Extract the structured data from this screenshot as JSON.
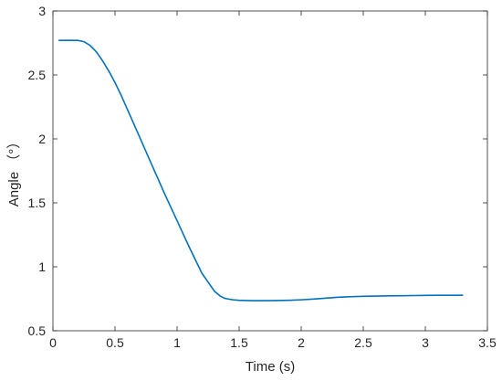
{
  "chart_data": {
    "type": "line",
    "title": "",
    "xlabel": "Time (s)",
    "ylabel": "Angle （°）",
    "xlim": [
      0,
      3.5
    ],
    "ylim": [
      0.5,
      3
    ],
    "xticks": [
      "0",
      "0.5",
      "1",
      "1.5",
      "2",
      "2.5",
      "3",
      "3.5"
    ],
    "yticks": [
      "0.5",
      "1",
      "1.5",
      "2",
      "2.5",
      "3"
    ],
    "grid": false,
    "legend": "none",
    "series": [
      {
        "color": "#0072BD",
        "x": [
          0.05,
          0.1,
          0.15,
          0.2,
          0.25,
          0.3,
          0.35,
          0.4,
          0.45,
          0.5,
          0.55,
          0.6,
          0.7,
          0.8,
          0.9,
          1.0,
          1.1,
          1.2,
          1.3,
          1.35,
          1.38,
          1.4,
          1.45,
          1.5,
          1.6,
          1.7,
          1.8,
          1.9,
          2.0,
          2.1,
          2.2,
          2.3,
          2.4,
          2.5,
          2.6,
          2.7,
          2.8,
          2.9,
          3.0,
          3.1,
          3.2,
          3.3
        ],
        "y": [
          2.77,
          2.77,
          2.77,
          2.77,
          2.76,
          2.73,
          2.68,
          2.61,
          2.53,
          2.44,
          2.34,
          2.23,
          2.01,
          1.79,
          1.57,
          1.36,
          1.15,
          0.95,
          0.81,
          0.77,
          0.755,
          0.75,
          0.742,
          0.738,
          0.735,
          0.735,
          0.736,
          0.738,
          0.742,
          0.748,
          0.755,
          0.762,
          0.766,
          0.769,
          0.771,
          0.773,
          0.774,
          0.775,
          0.776,
          0.777,
          0.777,
          0.777
        ]
      }
    ]
  }
}
